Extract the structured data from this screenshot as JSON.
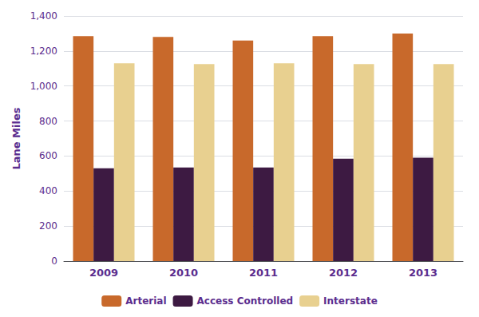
{
  "chart_data": {
    "type": "bar",
    "ylabel": "Lane Miles",
    "categories": [
      "2009",
      "2010",
      "2011",
      "2012",
      "2013"
    ],
    "series": [
      {
        "name": "Arterial",
        "color": "#C8692B",
        "values": [
          1285,
          1280,
          1260,
          1285,
          1300
        ]
      },
      {
        "name": "Access Controlled",
        "color": "#3D1A42",
        "values": [
          530,
          535,
          535,
          585,
          590
        ]
      },
      {
        "name": "Interstate",
        "color": "#E8D090",
        "values": [
          1130,
          1125,
          1130,
          1125,
          1125
        ]
      }
    ],
    "ylim": [
      0,
      1400
    ],
    "yticks": [
      0,
      200,
      400,
      600,
      800,
      {
        "value": 1000,
        "label": "1,000"
      },
      {
        "value": 1200,
        "label": "1,200"
      },
      {
        "value": 1400,
        "label": "1,400"
      }
    ],
    "grid": true,
    "legend": "bottom"
  }
}
